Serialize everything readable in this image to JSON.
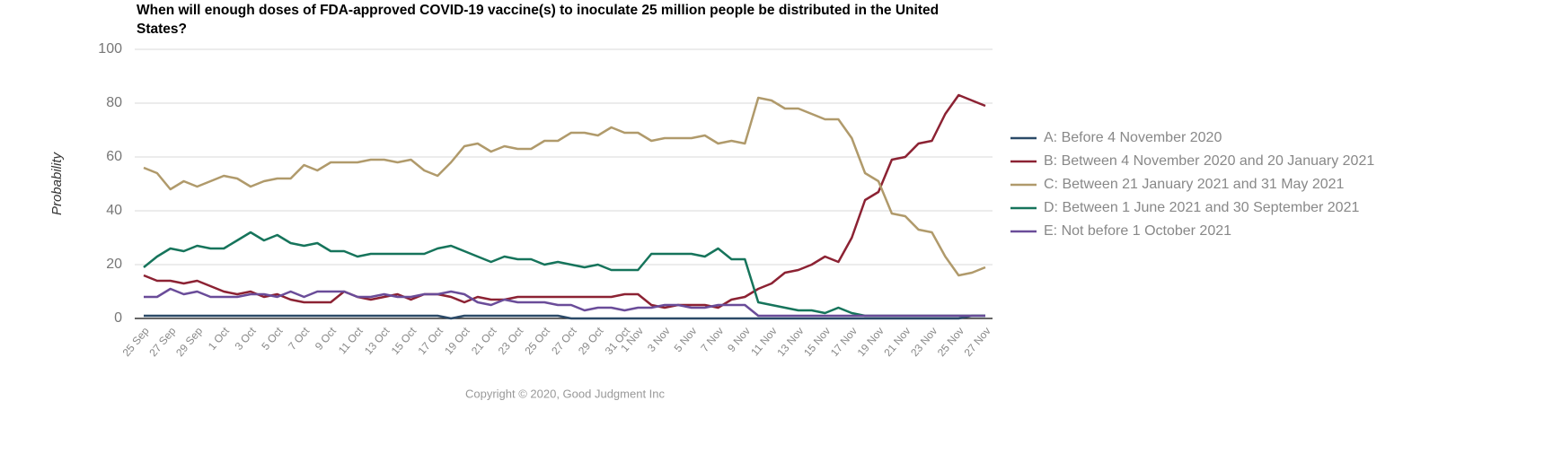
{
  "chart_data": {
    "type": "line",
    "title": "When will enough doses of FDA-approved COVID-19 vaccine(s) to inoculate 25 million people be distributed in the United States?",
    "y_label": "Probability",
    "footer": "Copyright © 2020, Good Judgment Inc",
    "categories": [
      "25 Sep",
      null,
      "27 Sep",
      null,
      "29 Sep",
      null,
      "1 Oct",
      null,
      "3 Oct",
      null,
      "5 Oct",
      null,
      "7 Oct",
      null,
      "9 Oct",
      null,
      "11 Oct",
      null,
      "13 Oct",
      null,
      "15 Oct",
      null,
      "17 Oct",
      null,
      "19 Oct",
      null,
      "21 Oct",
      null,
      "23 Oct",
      null,
      "25 Oct",
      null,
      "27 Oct",
      null,
      "29 Oct",
      null,
      "31 Oct",
      "1 Nov",
      null,
      "3 Nov",
      null,
      "5 Nov",
      null,
      "7 Nov",
      null,
      "9 Nov",
      null,
      "11 Nov",
      null,
      "13 Nov",
      null,
      "15 Nov",
      null,
      "17 Nov",
      null,
      "19 Nov",
      null,
      "21 Nov",
      null,
      "23 Nov",
      null,
      "25 Nov",
      null,
      "27 Nov"
    ],
    "series": [
      {
        "name": "A: Before 4 November 2020",
        "color": "#2b4a68",
        "values": [
          1,
          1,
          1,
          1,
          1,
          1,
          1,
          1,
          1,
          1,
          1,
          1,
          1,
          1,
          1,
          1,
          1,
          1,
          1,
          1,
          1,
          1,
          1,
          0,
          1,
          1,
          1,
          1,
          1,
          1,
          1,
          1,
          0,
          0,
          0,
          0,
          0,
          0,
          0,
          0,
          0,
          0,
          0,
          0,
          0,
          0,
          0,
          0,
          0,
          0,
          0,
          0,
          0,
          0,
          0,
          0,
          0,
          0,
          0,
          0,
          0,
          0,
          1,
          1
        ]
      },
      {
        "name": "B: Between 4 November 2020 and 20 January 2021",
        "color": "#8c2233",
        "values": [
          16,
          14,
          14,
          13,
          14,
          12,
          10,
          9,
          10,
          8,
          9,
          7,
          6,
          6,
          6,
          10,
          8,
          7,
          8,
          9,
          7,
          9,
          9,
          8,
          6,
          8,
          7,
          7,
          8,
          8,
          8,
          8,
          8,
          8,
          8,
          8,
          9,
          9,
          5,
          4,
          5,
          5,
          5,
          4,
          7,
          8,
          11,
          13,
          17,
          18,
          20,
          23,
          21,
          30,
          44,
          47,
          59,
          60,
          65,
          66,
          76,
          83,
          81,
          79
        ]
      },
      {
        "name": "C: Between 21 January 2021 and 31 May 2021",
        "color": "#b09a6b",
        "values": [
          56,
          54,
          48,
          51,
          49,
          51,
          53,
          52,
          49,
          51,
          52,
          52,
          57,
          55,
          58,
          58,
          58,
          59,
          59,
          58,
          59,
          55,
          53,
          58,
          64,
          65,
          62,
          64,
          63,
          63,
          66,
          66,
          69,
          69,
          68,
          71,
          69,
          69,
          66,
          67,
          67,
          67,
          68,
          65,
          66,
          65,
          82,
          81,
          78,
          78,
          76,
          74,
          74,
          67,
          54,
          51,
          39,
          38,
          33,
          32,
          23,
          16,
          17,
          19
        ]
      },
      {
        "name": "D: Between 1 June 2021 and 30 September 2021",
        "color": "#16745b",
        "values": [
          19,
          23,
          26,
          25,
          27,
          26,
          26,
          29,
          32,
          29,
          31,
          28,
          27,
          28,
          25,
          25,
          23,
          24,
          24,
          24,
          24,
          24,
          26,
          27,
          25,
          23,
          21,
          23,
          22,
          22,
          20,
          21,
          20,
          19,
          20,
          18,
          18,
          18,
          24,
          24,
          24,
          24,
          23,
          26,
          22,
          22,
          6,
          5,
          4,
          3,
          3,
          2,
          4,
          2,
          1,
          1,
          1,
          1,
          1,
          1,
          1,
          1,
          1,
          1
        ]
      },
      {
        "name": "E: Not before 1 October 2021",
        "color": "#6a4c99",
        "values": [
          8,
          8,
          11,
          9,
          10,
          8,
          8,
          8,
          9,
          9,
          8,
          10,
          8,
          10,
          10,
          10,
          8,
          8,
          9,
          8,
          8,
          9,
          9,
          10,
          9,
          6,
          5,
          7,
          6,
          6,
          6,
          5,
          5,
          3,
          4,
          4,
          3,
          4,
          4,
          5,
          5,
          4,
          4,
          5,
          5,
          5,
          1,
          1,
          1,
          1,
          1,
          1,
          1,
          1,
          1,
          1,
          1,
          1,
          1,
          1,
          1,
          1,
          1,
          1
        ]
      }
    ],
    "ylim": [
      0,
      100
    ],
    "yticks": [
      0,
      20,
      40,
      60,
      80,
      100
    ],
    "grid": true,
    "legend": "right"
  }
}
